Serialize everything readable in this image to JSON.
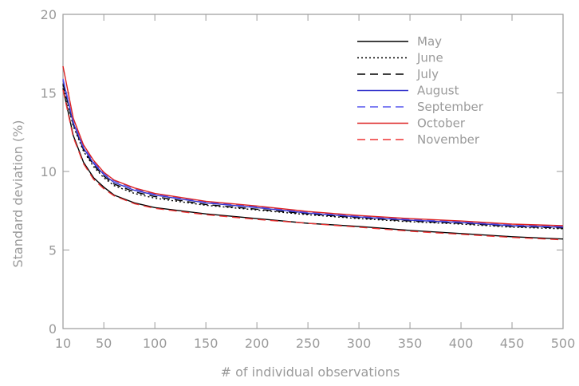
{
  "chart_data": {
    "type": "line",
    "title": "",
    "xlabel": "# of individual observations",
    "ylabel": "Standard deviation (%)",
    "xlim": [
      10,
      500
    ],
    "ylim": [
      0,
      20
    ],
    "x_ticks": [
      10,
      50,
      100,
      150,
      200,
      250,
      300,
      350,
      400,
      450,
      500
    ],
    "y_ticks": [
      0,
      5,
      10,
      15,
      20
    ],
    "legend_position": "top-right",
    "grid": false,
    "x": [
      10,
      20,
      30,
      40,
      50,
      60,
      80,
      100,
      150,
      200,
      250,
      300,
      350,
      400,
      450,
      500
    ],
    "series": [
      {
        "name": "May",
        "color": "#000000",
        "dash": "solid",
        "values": [
          15.3,
          12.3,
          10.6,
          9.6,
          9.0,
          8.5,
          8.0,
          7.7,
          7.3,
          7.0,
          6.7,
          6.5,
          6.25,
          6.05,
          5.85,
          5.7
        ]
      },
      {
        "name": "June",
        "color": "#000000",
        "dash": "dotted",
        "values": [
          15.5,
          12.9,
          11.3,
          10.3,
          9.6,
          9.1,
          8.6,
          8.3,
          7.85,
          7.55,
          7.25,
          7.0,
          6.8,
          6.65,
          6.45,
          6.35
        ]
      },
      {
        "name": "July",
        "color": "#000000",
        "dash": "dashed",
        "values": [
          15.6,
          13.0,
          11.4,
          10.4,
          9.7,
          9.2,
          8.7,
          8.4,
          7.9,
          7.6,
          7.3,
          7.05,
          6.85,
          6.7,
          6.5,
          6.4
        ]
      },
      {
        "name": "August",
        "color": "#3333cc",
        "dash": "solid",
        "values": [
          15.8,
          13.1,
          11.5,
          10.5,
          9.8,
          9.3,
          8.8,
          8.5,
          8.0,
          7.7,
          7.35,
          7.1,
          6.9,
          6.75,
          6.55,
          6.45
        ]
      },
      {
        "name": "September",
        "color": "#5555ee",
        "dash": "dashed",
        "values": [
          15.9,
          13.2,
          11.6,
          10.6,
          9.9,
          9.4,
          8.9,
          8.55,
          8.05,
          7.75,
          7.4,
          7.15,
          6.95,
          6.8,
          6.6,
          6.5
        ]
      },
      {
        "name": "October",
        "color": "#dd2222",
        "dash": "solid",
        "values": [
          16.7,
          13.4,
          11.7,
          10.7,
          9.95,
          9.45,
          8.95,
          8.6,
          8.1,
          7.8,
          7.45,
          7.2,
          7.0,
          6.85,
          6.65,
          6.55
        ]
      },
      {
        "name": "November",
        "color": "#ee3333",
        "dash": "dashed",
        "values": [
          15.2,
          12.2,
          10.5,
          9.5,
          8.9,
          8.45,
          7.95,
          7.65,
          7.25,
          6.95,
          6.7,
          6.45,
          6.2,
          6.0,
          5.8,
          5.65
        ]
      }
    ]
  }
}
